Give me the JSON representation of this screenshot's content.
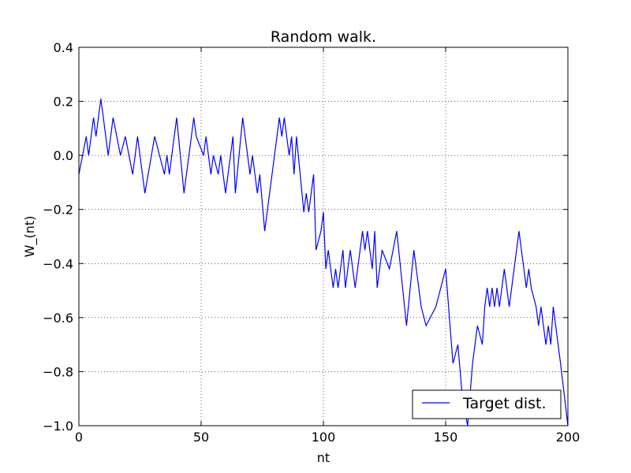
{
  "chart_data": {
    "type": "line",
    "title": "Random walk.",
    "xlabel": "nt",
    "ylabel": "W_(nt)",
    "xlim": [
      0,
      200
    ],
    "ylim": [
      -1.0,
      0.4
    ],
    "xticks": [
      0,
      50,
      100,
      150,
      200
    ],
    "xtick_labels": [
      "0",
      "50",
      "100",
      "150",
      "200"
    ],
    "yticks": [
      -1.0,
      -0.8,
      -0.6,
      -0.4,
      -0.2,
      0.0,
      0.2,
      0.4
    ],
    "ytick_labels": [
      "−1.0",
      "−0.8",
      "−0.6",
      "−0.4",
      "−0.2",
      "0.0",
      "0.2",
      "0.4"
    ],
    "grid": true,
    "legend_position": "lower-right",
    "series": [
      {
        "name": "Target dist.",
        "color": "#0000ff",
        "x": [
          0,
          3,
          4,
          6,
          7,
          9,
          12,
          14,
          17,
          19,
          22,
          23,
          24,
          27,
          31,
          35,
          36,
          37,
          39,
          40,
          43,
          47,
          48,
          51,
          52,
          54,
          55,
          57,
          58,
          60,
          61,
          63,
          64,
          67,
          70,
          71,
          73,
          74,
          76,
          77,
          79,
          80,
          82,
          83,
          84,
          85,
          86,
          87,
          88,
          89,
          92,
          93,
          94,
          96,
          97,
          99,
          100,
          101,
          102,
          103,
          104,
          105,
          106,
          108,
          109,
          111,
          113,
          115,
          116,
          117,
          118,
          119,
          120,
          121,
          122,
          124,
          127,
          130,
          134,
          137,
          138,
          139,
          140,
          142,
          146,
          150,
          153,
          155,
          157,
          159,
          161,
          163,
          165,
          166,
          167,
          168,
          169,
          170,
          171,
          172,
          174,
          175,
          176,
          177,
          178,
          180,
          182,
          183,
          184,
          185,
          187,
          188,
          189,
          190,
          191,
          192,
          193,
          194,
          195,
          196,
          197,
          200
        ],
        "y": [
          -0.07,
          0.07,
          0.0,
          0.14,
          0.07,
          0.21,
          0.0,
          0.14,
          0.0,
          0.07,
          -0.07,
          0.0,
          0.07,
          -0.14,
          0.07,
          -0.07,
          0.0,
          -0.07,
          0.07,
          0.14,
          -0.14,
          0.14,
          0.07,
          0.0,
          0.07,
          -0.07,
          0.0,
          -0.07,
          0.0,
          -0.14,
          -0.07,
          0.07,
          -0.14,
          0.14,
          -0.07,
          0.0,
          -0.14,
          -0.07,
          -0.28,
          -0.21,
          -0.07,
          0.0,
          0.14,
          0.07,
          0.14,
          0.07,
          0.0,
          0.07,
          -0.07,
          0.07,
          -0.21,
          -0.14,
          -0.21,
          -0.07,
          -0.35,
          -0.28,
          -0.21,
          -0.42,
          -0.35,
          -0.42,
          -0.49,
          -0.42,
          -0.49,
          -0.35,
          -0.49,
          -0.35,
          -0.49,
          -0.35,
          -0.28,
          -0.35,
          -0.28,
          -0.35,
          -0.42,
          -0.28,
          -0.49,
          -0.35,
          -0.42,
          -0.28,
          -0.63,
          -0.35,
          -0.42,
          -0.49,
          -0.56,
          -0.63,
          -0.56,
          -0.42,
          -0.77,
          -0.7,
          -0.91,
          -1.0,
          -0.77,
          -0.63,
          -0.7,
          -0.56,
          -0.49,
          -0.56,
          -0.49,
          -0.56,
          -0.49,
          -0.56,
          -0.42,
          -0.49,
          -0.56,
          -0.49,
          -0.42,
          -0.28,
          -0.42,
          -0.49,
          -0.42,
          -0.49,
          -0.56,
          -0.63,
          -0.56,
          -0.63,
          -0.7,
          -0.63,
          -0.7,
          -0.56,
          -0.63,
          -0.7,
          -0.77,
          -1.0
        ]
      }
    ]
  }
}
